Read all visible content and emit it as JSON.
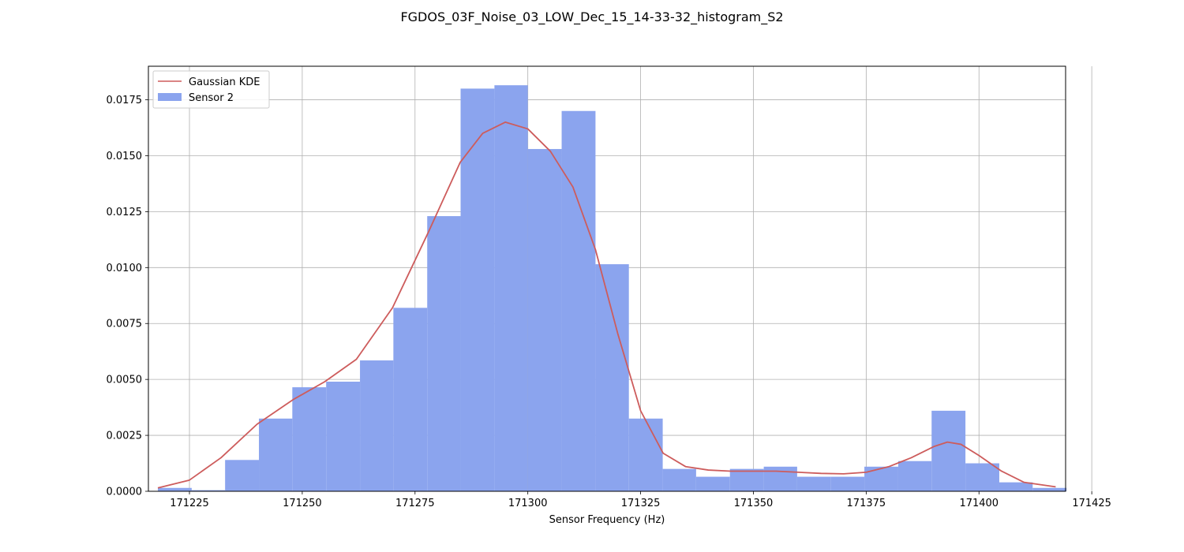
{
  "chart_data": {
    "type": "bar",
    "title": "FGDOS_03F_Noise_03_LOW_Dec_15_14-33-32_histogram_S2",
    "xlabel": "Sensor Frequency (Hz)",
    "ylabel": "",
    "xlim": [
      171215.9,
      171419.2
    ],
    "ylim": [
      0,
      0.019
    ],
    "xticks": [
      171225,
      171250,
      171275,
      171300,
      171325,
      171350,
      171375,
      171400,
      171425
    ],
    "xtick_labels": [
      "171225",
      "171250",
      "171275",
      "171300",
      "171325",
      "171350",
      "171375",
      "171400",
      "171425"
    ],
    "yticks": [
      0,
      0.0025,
      0.005,
      0.0075,
      0.01,
      0.0125,
      0.015,
      0.0175
    ],
    "ytick_labels": [
      "0.0000",
      "0.0025",
      "0.0050",
      "0.0075",
      "0.0100",
      "0.0125",
      "0.0150",
      "0.0175"
    ],
    "grid": true,
    "legend_position": "top-left",
    "series": [
      {
        "name": "Sensor 2",
        "kind": "histogram",
        "color": "#8ba4ee",
        "bin_edges": [
          171218.0,
          171225.5,
          171232.9,
          171240.4,
          171247.8,
          171255.3,
          171262.8,
          171270.2,
          171277.7,
          171285.1,
          171292.6,
          171300.0,
          171307.5,
          171315.0,
          171322.4,
          171329.9,
          171337.3,
          171344.8,
          171352.3,
          171359.7,
          171367.2,
          171374.6,
          171382.1,
          171389.5,
          171397.0,
          171404.5,
          171411.9,
          171419.4
        ],
        "values": [
          0.00015,
          5e-05,
          0.0014,
          0.00325,
          0.00465,
          0.0049,
          0.00585,
          0.0082,
          0.0123,
          0.018,
          0.01815,
          0.0153,
          0.017,
          0.01015,
          0.00325,
          0.001,
          0.00065,
          0.001,
          0.0011,
          0.00065,
          0.00065,
          0.0011,
          0.00135,
          0.0036,
          0.00125,
          0.0004,
          0.00015
        ]
      },
      {
        "name": "Gaussian KDE",
        "kind": "line",
        "color": "#cd5c5c",
        "x": [
          171218,
          171225,
          171232,
          171240,
          171248,
          171255,
          171262,
          171270,
          171278,
          171285,
          171290,
          171295,
          171300,
          171305,
          171310,
          171315,
          171320,
          171325,
          171330,
          171335,
          171340,
          171345,
          171350,
          171355,
          171360,
          171365,
          171370,
          171375,
          171380,
          171385,
          171390,
          171393,
          171396,
          171400,
          171405,
          171410,
          171417
        ],
        "y": [
          0.00015,
          0.0005,
          0.0015,
          0.003,
          0.0041,
          0.0049,
          0.0059,
          0.0082,
          0.0116,
          0.0147,
          0.016,
          0.0165,
          0.0162,
          0.0152,
          0.0136,
          0.0108,
          0.007,
          0.0036,
          0.0017,
          0.0011,
          0.00095,
          0.0009,
          0.0009,
          0.0009,
          0.00085,
          0.0008,
          0.00078,
          0.00085,
          0.0011,
          0.0015,
          0.002,
          0.0022,
          0.0021,
          0.0016,
          0.0009,
          0.0004,
          0.0002
        ]
      }
    ]
  }
}
